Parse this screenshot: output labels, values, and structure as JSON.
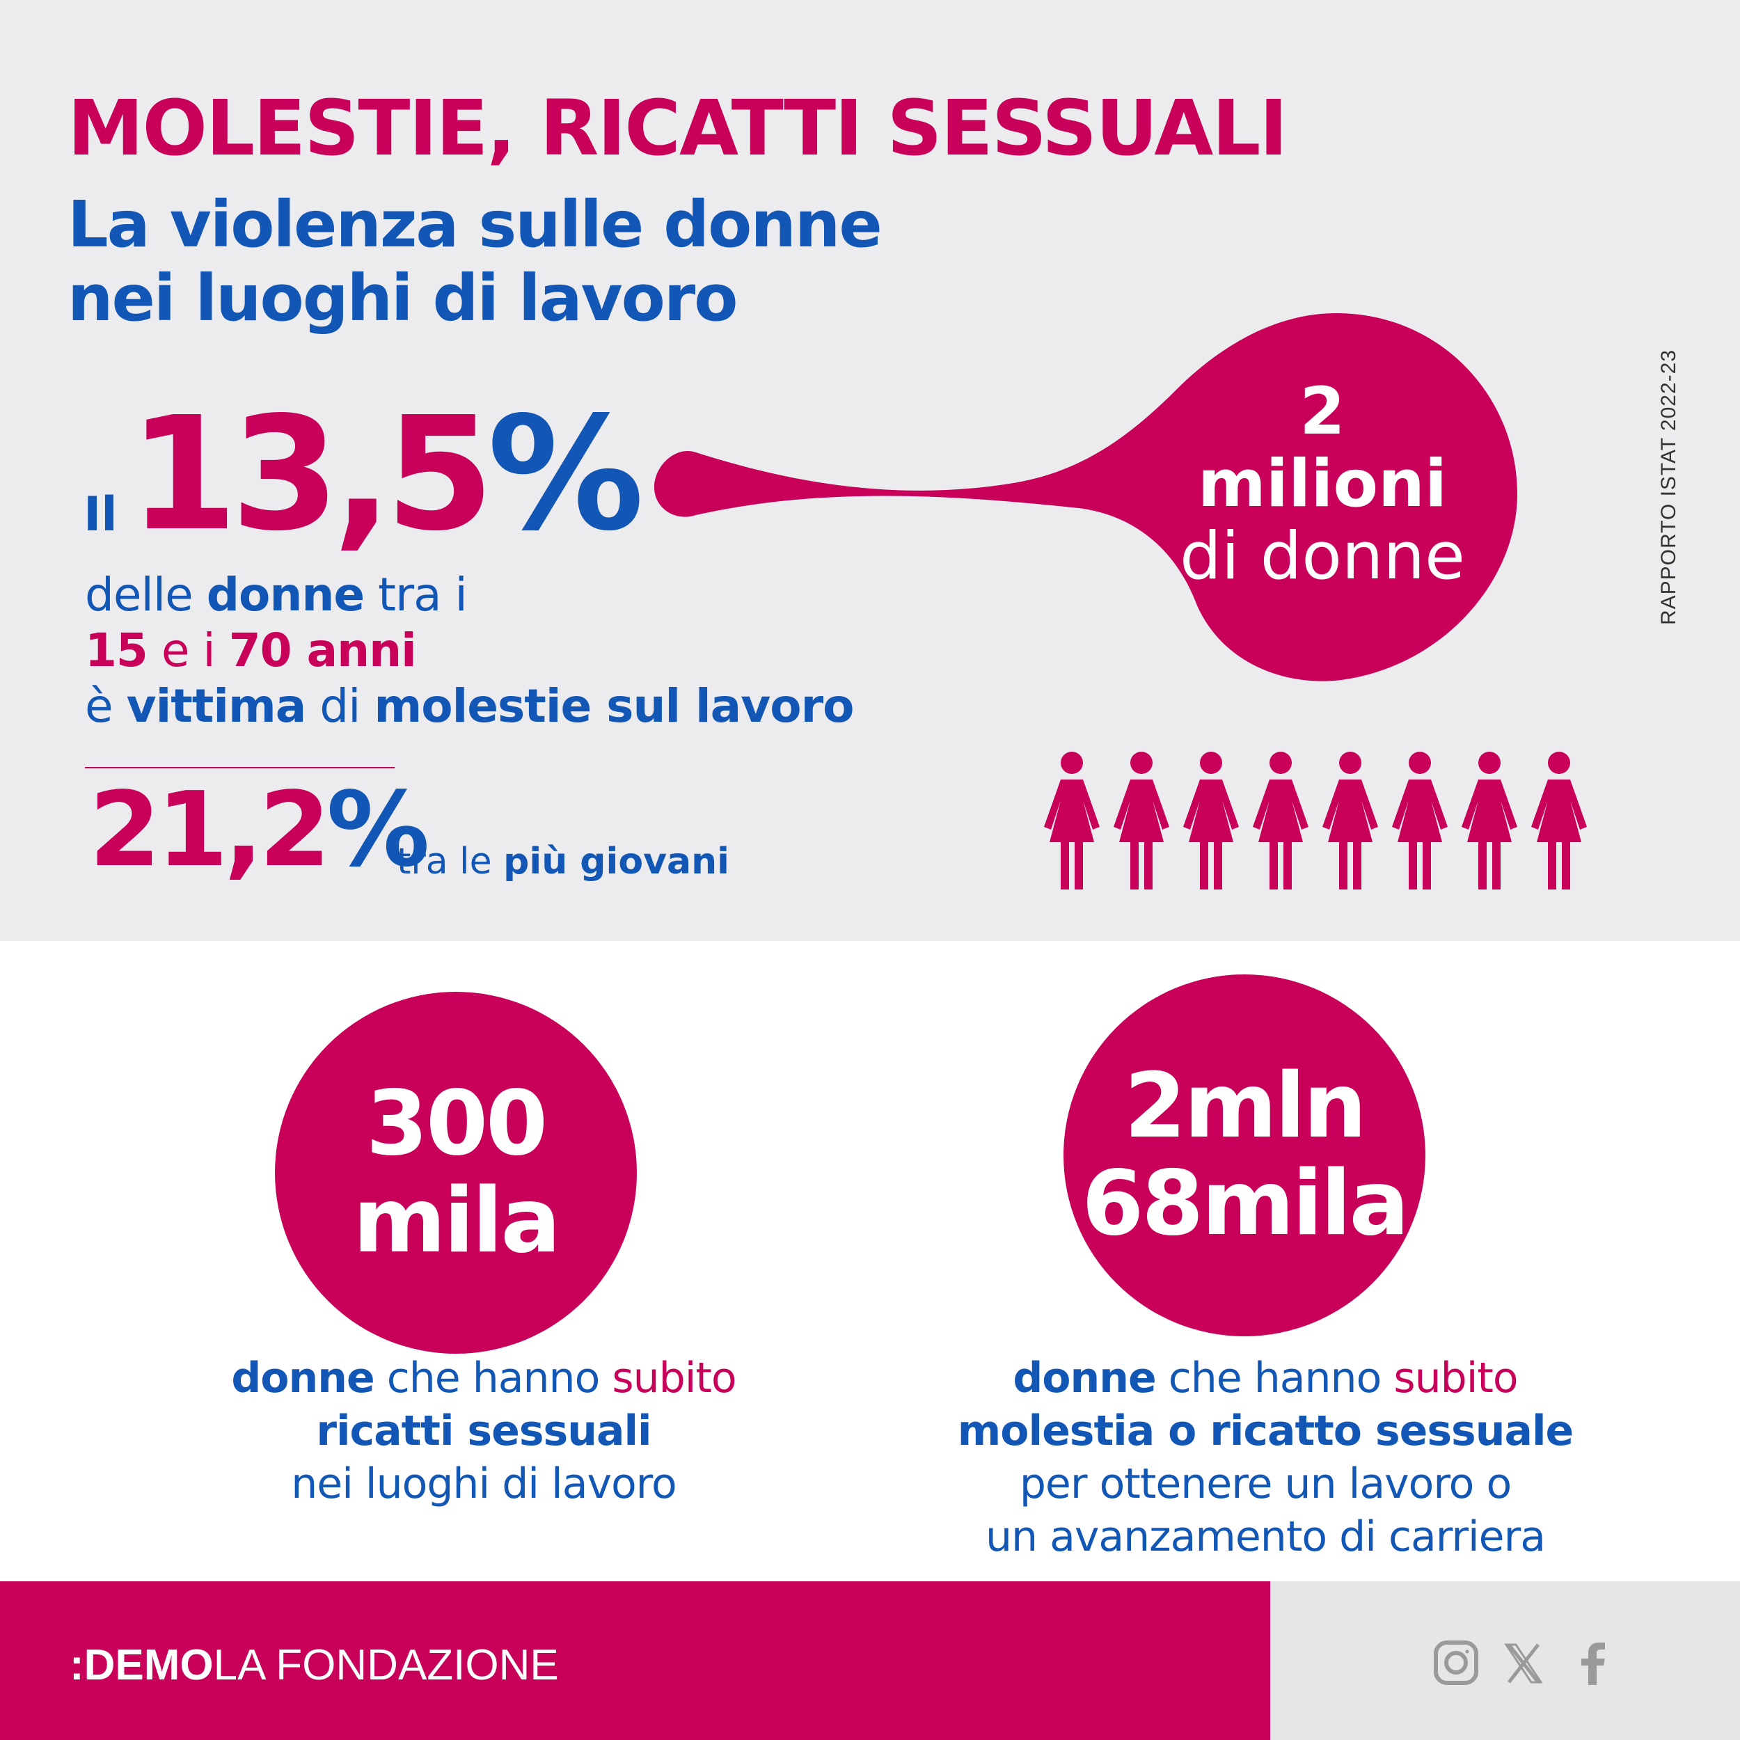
{
  "header": {
    "title": "MOLESTIE, RICATTI SESSUALI",
    "subtitle_line1": "La violenza sulle donne",
    "subtitle_line2": "nei luoghi di lavoro",
    "source": "RAPPORTO ISTAT 2022-23"
  },
  "main_stat": {
    "prefix": "Il",
    "value": "13,5",
    "percent_sign": "%",
    "desc_line1": {
      "a": "delle ",
      "b": "donne",
      "c": " tra i"
    },
    "desc_line2": {
      "a": "15",
      "b": " e i ",
      "c": "70 anni"
    },
    "desc_line3": {
      "a": "è ",
      "b": "vittima",
      "c": " di ",
      "d": "molestie sul lavoro"
    }
  },
  "young_stat": {
    "value": "21,2",
    "percent_sign": "%",
    "label_a": "tra le ",
    "label_b": "più giovani"
  },
  "bubble": {
    "line1": "2",
    "line2": "milioni",
    "line3": "di donne"
  },
  "women_icons": {
    "count": 8,
    "icon": "woman-figure-icon",
    "color": "#c8005a"
  },
  "stats": {
    "left": {
      "value_line1": "300",
      "value_line2": "mila",
      "caption_line1": {
        "a": "donne",
        "b": " che hanno ",
        "c": "subito"
      },
      "caption_line2": "ricatti sessuali",
      "caption_line3": "nei luoghi di lavoro"
    },
    "right": {
      "value_line1": "2mln",
      "value_line2": "68mila",
      "caption_line1": {
        "a": "donne",
        "b": " che hanno ",
        "c": "subito"
      },
      "caption_line2": "molestia o ricatto sessuale",
      "caption_line3": "per ottenere un lavoro o",
      "caption_line4": "un avanzamento di carriera"
    }
  },
  "footer": {
    "brand_mark": ":",
    "brand_bold": "DEMO",
    "brand_rest": "LA FONDAZIONE",
    "social_icons": [
      "instagram-icon",
      "x-icon",
      "facebook-icon"
    ]
  },
  "colors": {
    "accent": "#c8005a",
    "blue": "#1257b5",
    "top_background": "#ececee",
    "footer_right": "#e6e6e6"
  }
}
